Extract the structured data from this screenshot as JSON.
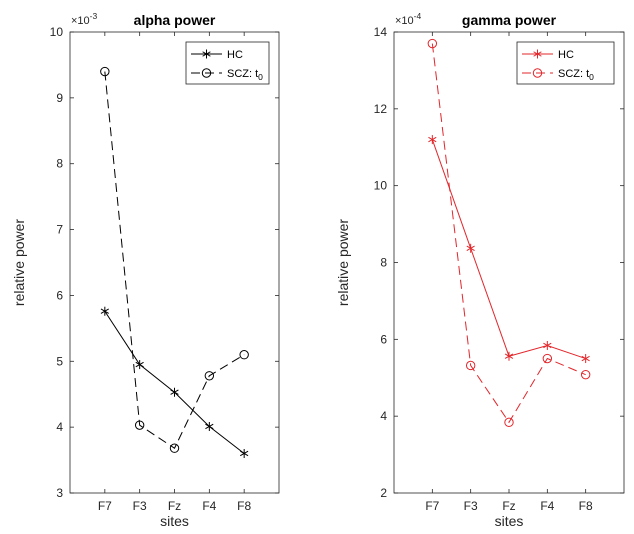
{
  "chart_data": [
    {
      "type": "line",
      "title": "alpha power",
      "xlabel": "sites",
      "ylabel": "relative power",
      "exponent_label": "×10",
      "exponent_power": "-3",
      "categories": [
        "F7",
        "F3",
        "Fz",
        "F4",
        "F8"
      ],
      "ylim": [
        3,
        10
      ],
      "yticks": [
        3,
        4,
        5,
        6,
        7,
        8,
        9,
        10
      ],
      "ytick_labels": [
        "3",
        "4",
        "5",
        "6",
        "7",
        "8",
        "9",
        "10"
      ],
      "color": "#000000",
      "legend_position": "top-right",
      "series": [
        {
          "name": "HC",
          "marker": "asterisk",
          "dash": "solid",
          "values": [
            5.76,
            4.95,
            4.53,
            4.01,
            3.6
          ]
        },
        {
          "name": "SCZ: t",
          "name_sub": "0",
          "marker": "circle",
          "dash": "dashed",
          "values": [
            9.4,
            4.03,
            3.68,
            4.78,
            5.1
          ]
        }
      ]
    },
    {
      "type": "line",
      "title": "gamma power",
      "xlabel": "sites",
      "ylabel": "relative power",
      "exponent_label": "×10",
      "exponent_power": "-4",
      "categories": [
        "F7",
        "F3",
        "Fz",
        "F4",
        "F8"
      ],
      "ylim": [
        2,
        14
      ],
      "yticks": [
        2,
        4,
        6,
        8,
        10,
        12,
        14
      ],
      "ytick_labels": [
        "2",
        "4",
        "6",
        "8",
        "10",
        "12",
        "14"
      ],
      "color": "#e3262b",
      "legend_position": "top-right",
      "series": [
        {
          "name": "HC",
          "marker": "asterisk",
          "dash": "solid",
          "values": [
            11.2,
            8.37,
            5.56,
            5.84,
            5.5
          ]
        },
        {
          "name": "SCZ: t",
          "name_sub": "0",
          "marker": "circle",
          "dash": "dashed",
          "values": [
            13.7,
            5.32,
            3.84,
            5.5,
            5.08
          ]
        }
      ]
    }
  ]
}
